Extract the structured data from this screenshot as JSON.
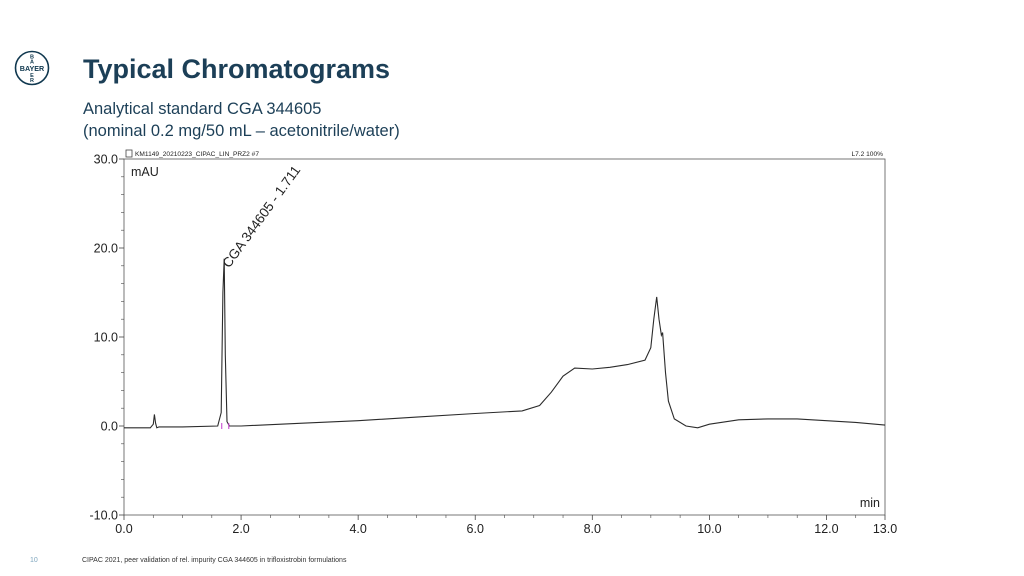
{
  "header": {
    "logo_text": "BAYER",
    "title": "Typical Chromatograms",
    "subtitle_line1": "Analytical standard CGA 344605",
    "subtitle_line2": "(nominal 0.2 mg/50 mL – acetonitrile/water)"
  },
  "footer": {
    "page_number": "10",
    "text": "CIPAC 2021, peer validation of rel. impurity CGA 344605 in trifloxistrobin formulations"
  },
  "colors": {
    "title": "#1c3f57",
    "trace": "#2b2b2b",
    "accent_marker": "#c23bcc",
    "logo_ring": "#10384f",
    "logo_cross": "#89b934"
  },
  "chart_data": {
    "type": "line",
    "run_label": "KM1149_20210223_CIPAC_LIN_PRZ2 #7",
    "channel_label": "L7.2 100%",
    "ylabel": "mAU",
    "xlabel": "min",
    "xlim": [
      0.0,
      13.0
    ],
    "ylim": [
      -10.0,
      30.0
    ],
    "x_ticks": [
      "0.0",
      "2.0",
      "4.0",
      "6.0",
      "8.0",
      "10.0",
      "12.0",
      "13.0"
    ],
    "y_ticks": [
      "-10.0",
      "0.0",
      "10.0",
      "20.0",
      "30.0"
    ],
    "peak_annotation": {
      "label": "CGA 344605 - 1.711",
      "x": 1.711,
      "y": 18.8
    },
    "series": [
      {
        "x": [
          0.0,
          0.45,
          0.5,
          0.52,
          0.54,
          0.56,
          0.6,
          1.0,
          1.6,
          1.66,
          1.69,
          1.711,
          1.73,
          1.76,
          1.8,
          2.0,
          3.0,
          4.0,
          5.0,
          6.0,
          6.8,
          7.1,
          7.3,
          7.5,
          7.7,
          8.0,
          8.3,
          8.6,
          8.9,
          9.0,
          9.05,
          9.1,
          9.14,
          9.18,
          9.2,
          9.25,
          9.3,
          9.4,
          9.6,
          9.8,
          10.0,
          10.5,
          11.0,
          11.5,
          12.0,
          12.5,
          13.0
        ],
        "y": [
          -0.2,
          -0.2,
          0.2,
          1.3,
          0.3,
          -0.2,
          -0.1,
          -0.1,
          0.0,
          1.5,
          15.0,
          18.8,
          8.0,
          0.5,
          0.0,
          0.0,
          0.3,
          0.6,
          1.0,
          1.4,
          1.7,
          2.3,
          3.8,
          5.6,
          6.5,
          6.4,
          6.6,
          6.9,
          7.4,
          8.8,
          12.0,
          14.5,
          12.0,
          10.2,
          10.5,
          6.0,
          2.8,
          0.8,
          0.0,
          -0.2,
          0.2,
          0.7,
          0.8,
          0.8,
          0.6,
          0.4,
          0.1
        ]
      }
    ]
  }
}
